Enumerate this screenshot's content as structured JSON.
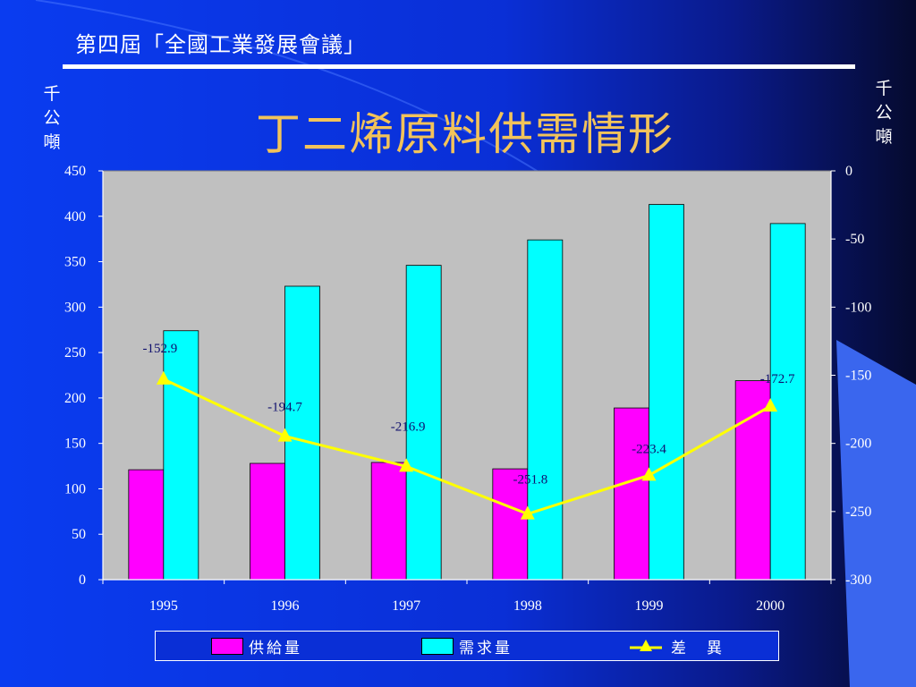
{
  "header": {
    "title": "第四屆「全國工業發展會議」"
  },
  "main_title": "丁二烯原料供需情形",
  "units": {
    "left": [
      "千",
      "公",
      "噸"
    ],
    "right": [
      "千",
      "公",
      "噸"
    ]
  },
  "colors": {
    "supply": "#ff00ff",
    "demand": "#00ffff",
    "difference": "#ffff00",
    "plot_bg": "#c0c0c0",
    "title": "#f2c35a"
  },
  "legend": {
    "supply": "供給量",
    "demand": "需求量",
    "difference": "差　異"
  },
  "chart_data": {
    "type": "bar",
    "categories": [
      "1995",
      "1996",
      "1997",
      "1998",
      "1999",
      "2000"
    ],
    "series": [
      {
        "name": "供給量",
        "type": "bar",
        "axis": "left",
        "values": [
          121,
          128,
          129,
          122,
          189,
          219
        ]
      },
      {
        "name": "需求量",
        "type": "bar",
        "axis": "left",
        "values": [
          274,
          323,
          346,
          374,
          413,
          392
        ]
      },
      {
        "name": "差　異",
        "type": "line",
        "axis": "right",
        "marker": "triangle",
        "values": [
          -152.9,
          -194.7,
          -216.9,
          -251.8,
          -223.4,
          -172.7
        ]
      }
    ],
    "y_left": {
      "ylim": [
        0,
        450
      ],
      "ticks": [
        0,
        50,
        100,
        150,
        200,
        250,
        300,
        350,
        400,
        450
      ]
    },
    "y_right": {
      "ylim": [
        -300,
        0
      ],
      "ticks": [
        0,
        -50,
        -100,
        -150,
        -200,
        -250,
        -300
      ]
    },
    "grid": false,
    "legend_position": "bottom",
    "data_labels": [
      "-152.9",
      "-194.7",
      "-216.9",
      "-251.8",
      "-223.4",
      "-172.7"
    ]
  }
}
